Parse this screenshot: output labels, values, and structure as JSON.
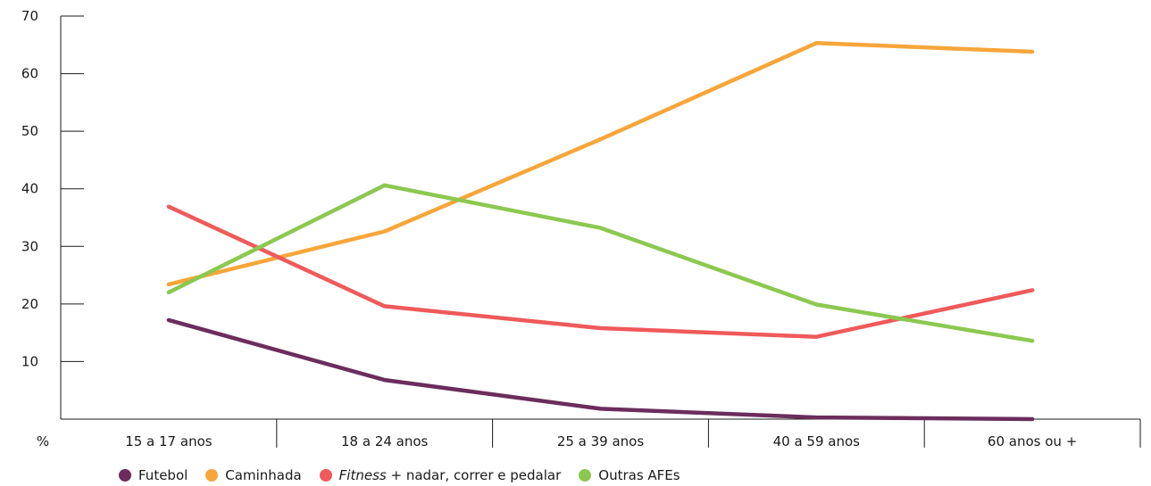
{
  "chart_data": {
    "type": "line",
    "ylabel": "%",
    "ylim": [
      0,
      70
    ],
    "yticks": [
      10,
      20,
      30,
      40,
      50,
      60,
      70
    ],
    "ytick_labels": [
      "10",
      "20",
      "30",
      "40",
      "50",
      "60",
      "70"
    ],
    "categories": [
      "15 a 17 anos",
      "18 a 24 anos",
      "25 a 39 anos",
      "40 a 59 anos",
      "60 anos ou +"
    ],
    "legend_position": "bottom",
    "grid": false,
    "series": [
      {
        "name": "Futebol",
        "color": "#6b2d5c",
        "values": [
          17.2,
          6.8,
          1.8,
          0.3,
          0.0
        ]
      },
      {
        "name": "Caminhada",
        "color": "#f7a63a",
        "values": [
          23.4,
          32.6,
          48.6,
          65.3,
          63.8
        ]
      },
      {
        "name_italic": "Fitness",
        "name_rest": " + nadar, correr e pedalar",
        "color": "#ef5a5a",
        "values": [
          36.9,
          19.6,
          15.8,
          14.3,
          22.4
        ]
      },
      {
        "name": "Outras AFEs",
        "color": "#8cc850",
        "values": [
          22.0,
          40.6,
          33.2,
          19.9,
          13.6
        ]
      }
    ]
  }
}
